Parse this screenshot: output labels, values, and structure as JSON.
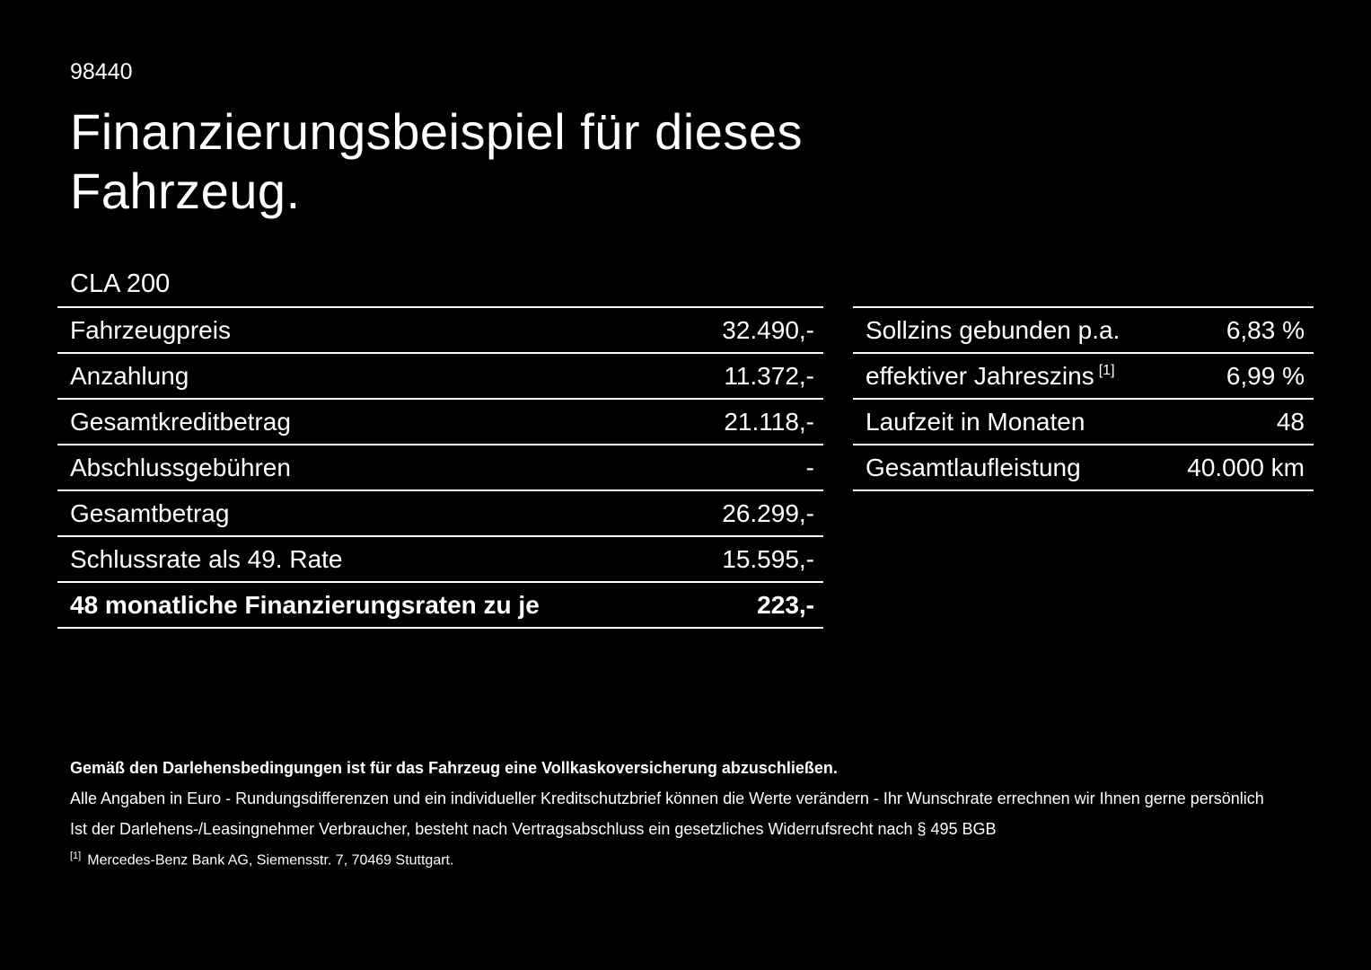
{
  "page": {
    "id": "98440",
    "title": "Finanzierungsbeispiel für dieses Fahrzeug.",
    "model": "CLA 200"
  },
  "colors": {
    "background": "#000000",
    "text": "#ffffff",
    "divider": "#ffffff"
  },
  "left_table": {
    "rows": [
      {
        "label": "Fahrzeugpreis",
        "value": "32.490,-"
      },
      {
        "label": "Anzahlung",
        "value": "11.372,-"
      },
      {
        "label": "Gesamtkreditbetrag",
        "value": "21.118,-"
      },
      {
        "label": "Abschlussgebühren",
        "value": "-"
      },
      {
        "label": "Gesamtbetrag",
        "value": "26.299,-"
      },
      {
        "label": "Schlussrate als 49. Rate",
        "value": "15.595,-"
      },
      {
        "label": "48 monatliche Finanzierungsraten zu je",
        "value": "223,-"
      }
    ]
  },
  "right_table": {
    "rows": [
      {
        "label": "Sollzins gebunden p.a.",
        "value": "6,83 %"
      },
      {
        "label": "effektiver Jahreszins",
        "sup": "[1]",
        "value": "6,99 %"
      },
      {
        "label": "Laufzeit in Monaten",
        "value": "48"
      },
      {
        "label": "Gesamtlaufleistung",
        "value": "40.000 km"
      }
    ]
  },
  "footer": {
    "bold_note": "Gemäß den Darlehensbedingungen ist für das Fahrzeug eine Vollkaskoversicherung abzuschließen.",
    "note1": "Alle Angaben in Euro - Rundungsdifferenzen und ein individueller Kreditschutzbrief können die Werte verändern - Ihr Wunschrate errechnen wir Ihnen gerne persönlich",
    "note2": "Ist der Darlehens-/Leasingnehmer Verbraucher, besteht nach Vertragsabschluss ein gesetzliches Widerrufsrecht nach § 495 BGB",
    "footnote_marker": "[1]",
    "footnote": "Mercedes-Benz Bank AG, Siemensstr. 7, 70469 Stuttgart."
  }
}
